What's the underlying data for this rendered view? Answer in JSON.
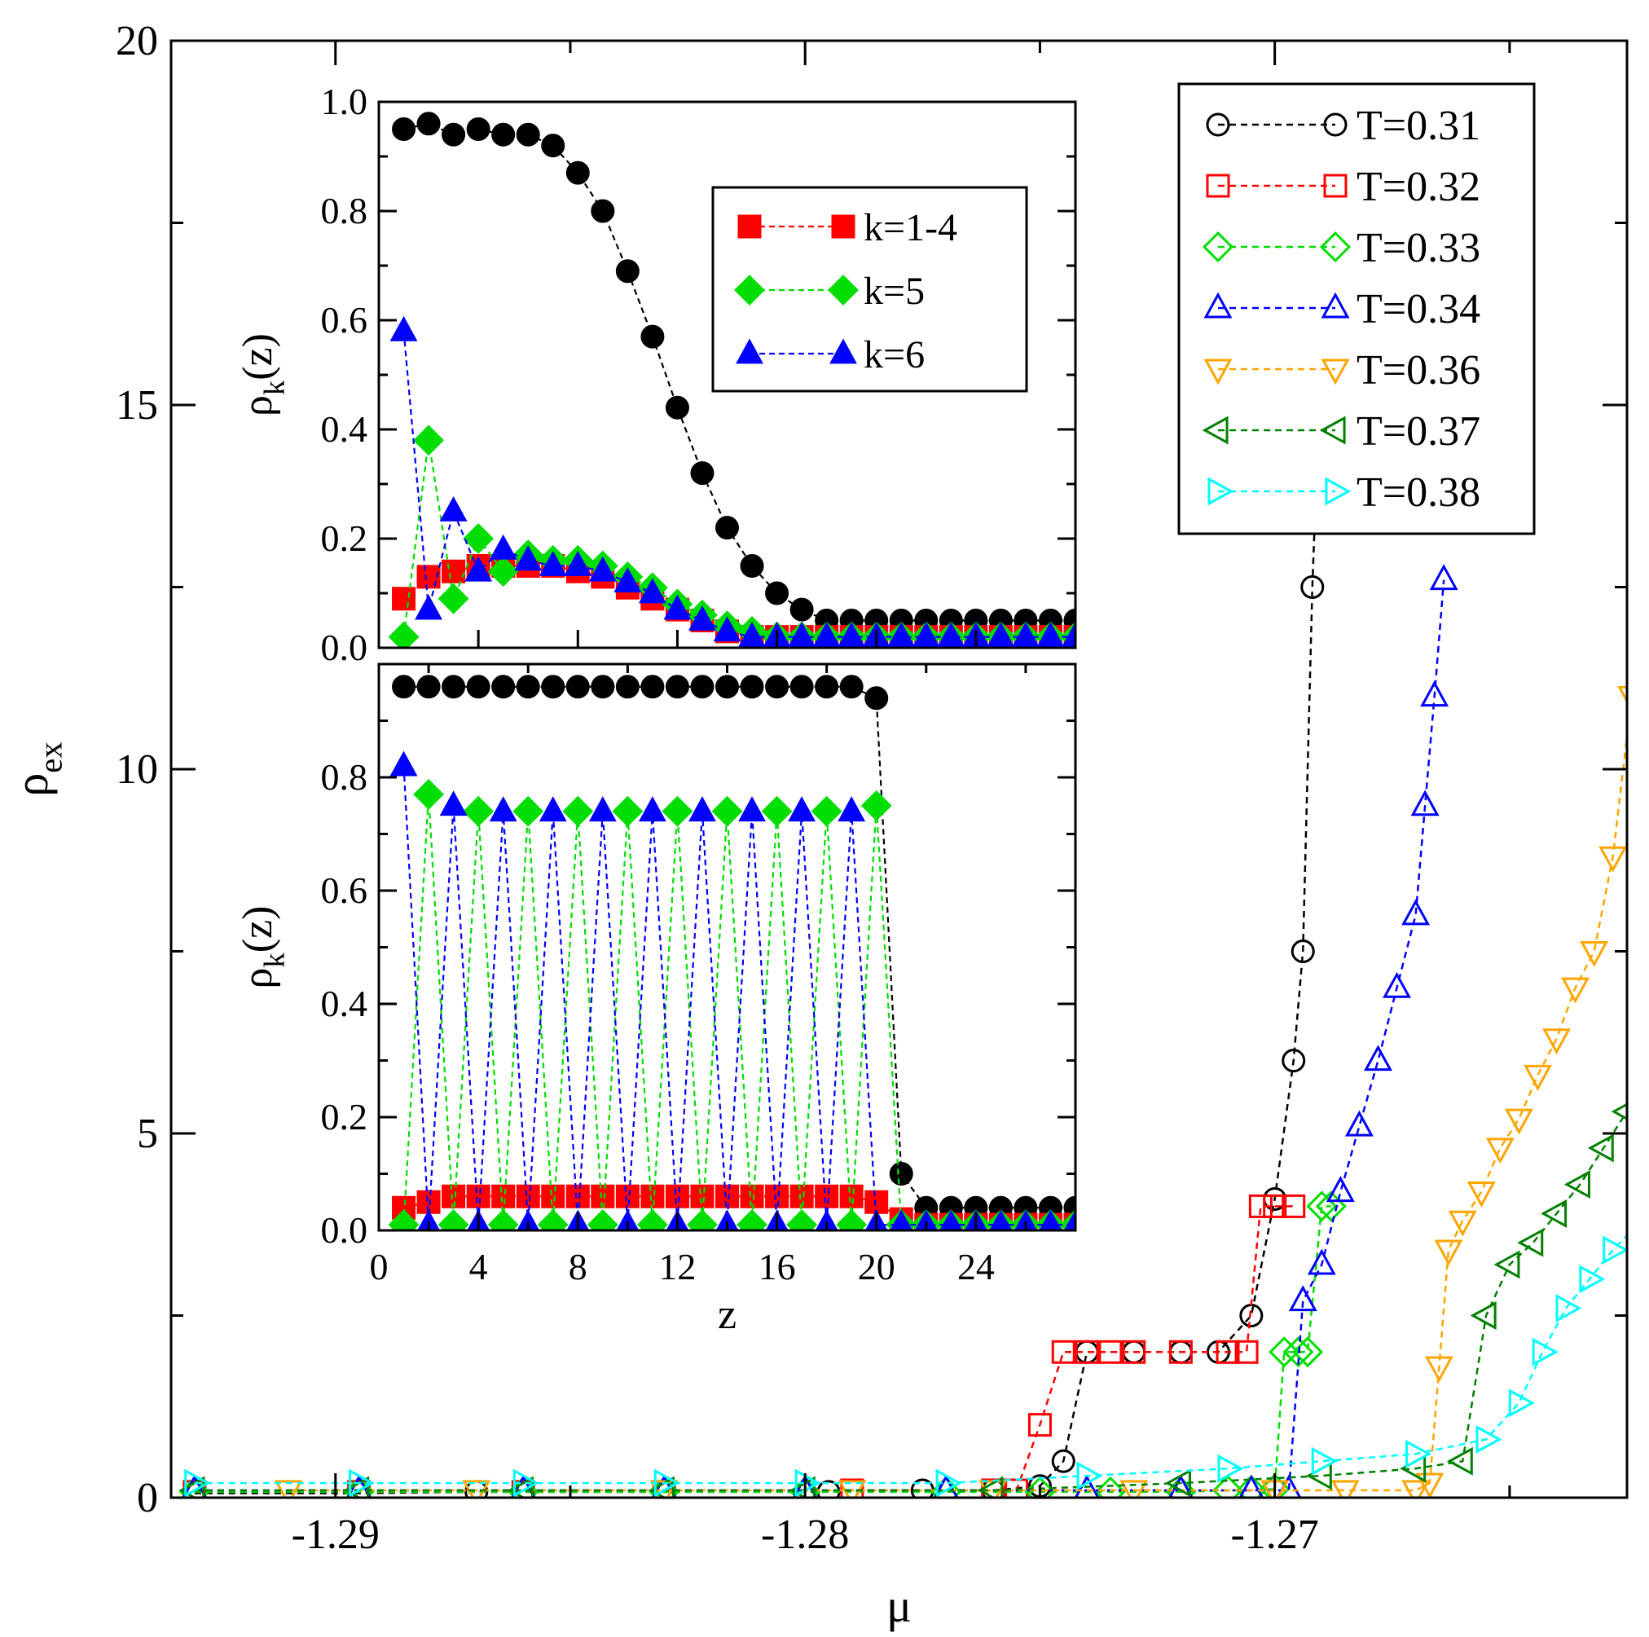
{
  "chart_data": [
    {
      "name": "main",
      "type": "line",
      "xlabel": "μ",
      "ylabel": "ρ",
      "ylabel_sub": "ex",
      "xlim": [
        -1.2935,
        -1.2625
      ],
      "ylim": [
        0,
        20
      ],
      "xticks": [
        -1.29,
        -1.28,
        -1.27
      ],
      "xtick_labels": [
        "-1.29",
        "-1.28",
        "-1.27"
      ],
      "yticks": [
        0,
        5,
        10,
        15,
        20
      ],
      "ytick_labels": [
        "0",
        "5",
        "10",
        "15",
        "20"
      ],
      "legend_position": "top-right",
      "series": [
        {
          "name": "T=0.31",
          "color": "#000000",
          "marker": "circle",
          "x": [
            -1.293,
            -1.2895,
            -1.287,
            -1.283,
            -1.2795,
            -1.2775,
            -1.276,
            -1.275,
            -1.2745,
            -1.274,
            -1.273,
            -1.272,
            -1.2712,
            -1.2705,
            -1.27,
            -1.2696,
            -1.2694,
            -1.2692,
            -1.269
          ],
          "y": [
            0.06,
            0.06,
            0.08,
            0.08,
            0.08,
            0.1,
            0.1,
            0.16,
            0.5,
            2.0,
            2.0,
            2.0,
            2.0,
            2.5,
            4.1,
            6.0,
            7.5,
            12.5,
            16.0
          ]
        },
        {
          "name": "T=0.32",
          "color": "#ff0000",
          "marker": "square",
          "x": [
            -1.293,
            -1.2895,
            -1.286,
            -1.283,
            -1.279,
            -1.276,
            -1.2755,
            -1.275,
            -1.2745,
            -1.274,
            -1.2735,
            -1.273,
            -1.272,
            -1.271,
            -1.2706,
            -1.2703,
            -1.27,
            -1.2696
          ],
          "y": [
            0.08,
            0.08,
            0.08,
            0.08,
            0.1,
            0.1,
            0.1,
            1.0,
            2.0,
            2.0,
            2.0,
            2.0,
            2.0,
            2.0,
            2.0,
            4.0,
            4.0,
            4.0
          ]
        },
        {
          "name": "T=0.33",
          "color": "#00dd00",
          "marker": "diamond",
          "x": [
            -1.293,
            -1.2895,
            -1.286,
            -1.283,
            -1.28,
            -1.277,
            -1.275,
            -1.2735,
            -1.272,
            -1.271,
            -1.2705,
            -1.27,
            -1.2698,
            -1.2695,
            -1.2693,
            -1.269,
            -1.2688
          ],
          "y": [
            0.08,
            0.08,
            0.08,
            0.08,
            0.08,
            0.08,
            0.08,
            0.08,
            0.08,
            0.1,
            0.1,
            0.12,
            2.0,
            2.0,
            2.0,
            4.0,
            4.0
          ]
        },
        {
          "name": "T=0.34",
          "color": "#0000ff",
          "marker": "triangle-up",
          "x": [
            -1.293,
            -1.2895,
            -1.286,
            -1.283,
            -1.28,
            -1.277,
            -1.274,
            -1.272,
            -1.2705,
            -1.2697,
            -1.2694,
            -1.269,
            -1.2686,
            -1.2682,
            -1.2678,
            -1.2674,
            -1.267,
            -1.2668,
            -1.2666,
            -1.2664
          ],
          "y": [
            0.1,
            0.1,
            0.1,
            0.1,
            0.1,
            0.1,
            0.1,
            0.1,
            0.1,
            0.1,
            2.7,
            3.2,
            4.2,
            5.1,
            6.0,
            7.0,
            8.0,
            9.5,
            11.0,
            12.6
          ]
        },
        {
          "name": "T=0.36",
          "color": "#ffa500",
          "marker": "triangle-down",
          "x": [
            -1.291,
            -1.287,
            -1.283,
            -1.279,
            -1.276,
            -1.273,
            -1.27,
            -1.2685,
            -1.267,
            -1.2667,
            -1.2665,
            -1.2663,
            -1.266,
            -1.2656,
            -1.2652,
            -1.2648,
            -1.2644,
            -1.264,
            -1.2636,
            -1.2632,
            -1.2628,
            -1.2624
          ],
          "y": [
            0.1,
            0.1,
            0.1,
            0.1,
            0.1,
            0.1,
            0.1,
            0.1,
            0.1,
            0.2,
            1.8,
            3.4,
            3.8,
            4.2,
            4.8,
            5.2,
            5.8,
            6.3,
            7.0,
            7.5,
            8.8,
            11.0
          ]
        },
        {
          "name": "T=0.37",
          "color": "#008000",
          "marker": "triangle-left",
          "x": [
            -1.293,
            -1.2895,
            -1.286,
            -1.283,
            -1.28,
            -1.276,
            -1.272,
            -1.269,
            -1.267,
            -1.266,
            -1.2655,
            -1.265,
            -1.2645,
            -1.264,
            -1.2635,
            -1.263,
            -1.2625,
            -1.262,
            -1.2616,
            -1.2612,
            -1.2608,
            -1.2604
          ],
          "y": [
            0.1,
            0.1,
            0.1,
            0.1,
            0.1,
            0.1,
            0.2,
            0.3,
            0.4,
            0.5,
            2.5,
            3.2,
            3.5,
            3.9,
            4.3,
            4.8,
            5.3,
            5.9,
            6.5,
            7.5,
            8.5,
            11.0
          ]
        },
        {
          "name": "T=0.38",
          "color": "#00ffff",
          "marker": "triangle-right",
          "x": [
            -1.293,
            -1.2895,
            -1.286,
            -1.283,
            -1.28,
            -1.277,
            -1.274,
            -1.271,
            -1.269,
            -1.267,
            -1.2655,
            -1.2648,
            -1.2643,
            -1.2638,
            -1.2633,
            -1.2628,
            -1.2622,
            -1.2616,
            -1.261,
            -1.2604,
            -1.2598,
            -1.2592
          ],
          "y": [
            0.2,
            0.2,
            0.2,
            0.2,
            0.2,
            0.2,
            0.3,
            0.4,
            0.5,
            0.6,
            0.8,
            1.3,
            2.0,
            2.6,
            3.0,
            3.4,
            3.8,
            4.3,
            5.0,
            6.0,
            7.5,
            10.0
          ]
        }
      ]
    },
    {
      "name": "inset-top",
      "type": "line",
      "ylabel": "ρ",
      "ylabel_sub": "k",
      "ylabel_suffix": "(z)",
      "xlim": [
        0,
        28
      ],
      "ylim": [
        0,
        1.0
      ],
      "yticks": [
        0,
        0.2,
        0.4,
        0.6,
        0.8,
        1.0
      ],
      "ytick_labels": [
        "0.0",
        "0.2",
        "0.4",
        "0.6",
        "0.8",
        "1.0"
      ],
      "legend_position": "top-right",
      "series": [
        {
          "name": "total",
          "color": "#000000",
          "marker": "filled-circle",
          "legend": false,
          "x": [
            1,
            2,
            3,
            4,
            5,
            6,
            7,
            8,
            9,
            10,
            11,
            12,
            13,
            14,
            15,
            16,
            17,
            18,
            19,
            20,
            21,
            22,
            23,
            24,
            25,
            26,
            27,
            28
          ],
          "y": [
            0.95,
            0.96,
            0.94,
            0.95,
            0.94,
            0.94,
            0.92,
            0.87,
            0.8,
            0.69,
            0.57,
            0.44,
            0.32,
            0.22,
            0.15,
            0.1,
            0.07,
            0.05,
            0.05,
            0.05,
            0.05,
            0.05,
            0.05,
            0.05,
            0.05,
            0.05,
            0.05,
            0.05
          ]
        },
        {
          "name": "k=1-4",
          "color": "#ff0000",
          "marker": "filled-square",
          "x": [
            1,
            2,
            3,
            4,
            5,
            6,
            7,
            8,
            9,
            10,
            11,
            12,
            13,
            14,
            15,
            16,
            17,
            18,
            19,
            20,
            21,
            22,
            23,
            24,
            25,
            26,
            27,
            28
          ],
          "y": [
            0.09,
            0.13,
            0.14,
            0.15,
            0.15,
            0.15,
            0.15,
            0.14,
            0.13,
            0.11,
            0.09,
            0.07,
            0.05,
            0.03,
            0.02,
            0.02,
            0.02,
            0.02,
            0.02,
            0.02,
            0.02,
            0.02,
            0.02,
            0.02,
            0.02,
            0.02,
            0.02,
            0.02
          ]
        },
        {
          "name": "k=5",
          "color": "#00dd00",
          "marker": "filled-diamond",
          "x": [
            1,
            2,
            3,
            4,
            5,
            6,
            7,
            8,
            9,
            10,
            11,
            12,
            13,
            14,
            15,
            16,
            17,
            18,
            19,
            20,
            21,
            22,
            23,
            24,
            25,
            26,
            27,
            28
          ],
          "y": [
            0.02,
            0.38,
            0.09,
            0.2,
            0.14,
            0.17,
            0.16,
            0.16,
            0.15,
            0.13,
            0.11,
            0.08,
            0.06,
            0.04,
            0.03,
            0.02,
            0.02,
            0.02,
            0.02,
            0.02,
            0.02,
            0.02,
            0.02,
            0.02,
            0.02,
            0.02,
            0.02,
            0.02
          ]
        },
        {
          "name": "k=6",
          "color": "#0000ff",
          "marker": "filled-triangle-up",
          "x": [
            1,
            2,
            3,
            4,
            5,
            6,
            7,
            8,
            9,
            10,
            11,
            12,
            13,
            14,
            15,
            16,
            17,
            18,
            19,
            20,
            21,
            22,
            23,
            24,
            25,
            26,
            27,
            28
          ],
          "y": [
            0.58,
            0.07,
            0.25,
            0.14,
            0.18,
            0.16,
            0.15,
            0.15,
            0.14,
            0.12,
            0.1,
            0.07,
            0.05,
            0.03,
            0.02,
            0.02,
            0.02,
            0.02,
            0.02,
            0.02,
            0.02,
            0.02,
            0.02,
            0.02,
            0.02,
            0.02,
            0.02,
            0.02
          ]
        }
      ],
      "legend_entries": [
        "k=1-4",
        "k=5",
        "k=6"
      ]
    },
    {
      "name": "inset-bottom",
      "type": "line",
      "xlabel": "z",
      "ylabel": "ρ",
      "ylabel_sub": "k",
      "ylabel_suffix": "(z)",
      "xlim": [
        0,
        28
      ],
      "ylim": [
        0,
        1.0
      ],
      "xticks": [
        0,
        4,
        8,
        12,
        16,
        20,
        24
      ],
      "xtick_labels": [
        "0",
        "4",
        "8",
        "12",
        "16",
        "20",
        "24"
      ],
      "yticks": [
        0,
        0.2,
        0.4,
        0.6,
        0.8
      ],
      "ytick_labels": [
        "0.0",
        "0.2",
        "0.4",
        "0.6",
        "0.8"
      ],
      "series": [
        {
          "name": "total",
          "color": "#000000",
          "marker": "filled-circle",
          "x": [
            1,
            2,
            3,
            4,
            5,
            6,
            7,
            8,
            9,
            10,
            11,
            12,
            13,
            14,
            15,
            16,
            17,
            18,
            19,
            20,
            21,
            22,
            23,
            24,
            25,
            26,
            27,
            28
          ],
          "y": [
            0.96,
            0.96,
            0.96,
            0.96,
            0.96,
            0.96,
            0.96,
            0.96,
            0.96,
            0.96,
            0.96,
            0.96,
            0.96,
            0.96,
            0.96,
            0.96,
            0.96,
            0.96,
            0.96,
            0.94,
            0.1,
            0.04,
            0.04,
            0.04,
            0.04,
            0.04,
            0.04,
            0.04
          ]
        },
        {
          "name": "k=1-4",
          "color": "#ff0000",
          "marker": "filled-square",
          "x": [
            1,
            2,
            3,
            4,
            5,
            6,
            7,
            8,
            9,
            10,
            11,
            12,
            13,
            14,
            15,
            16,
            17,
            18,
            19,
            20,
            21,
            22,
            23,
            24,
            25,
            26,
            27,
            28
          ],
          "y": [
            0.04,
            0.05,
            0.06,
            0.06,
            0.06,
            0.06,
            0.06,
            0.06,
            0.06,
            0.06,
            0.06,
            0.06,
            0.06,
            0.06,
            0.06,
            0.06,
            0.06,
            0.06,
            0.06,
            0.05,
            0.02,
            0.01,
            0.01,
            0.01,
            0.01,
            0.01,
            0.01,
            0.01
          ]
        },
        {
          "name": "k=5",
          "color": "#00dd00",
          "marker": "filled-diamond",
          "x": [
            1,
            2,
            3,
            4,
            5,
            6,
            7,
            8,
            9,
            10,
            11,
            12,
            13,
            14,
            15,
            16,
            17,
            18,
            19,
            20,
            21,
            22,
            23,
            24,
            25,
            26,
            27,
            28
          ],
          "y": [
            0.01,
            0.77,
            0.01,
            0.74,
            0.01,
            0.74,
            0.01,
            0.74,
            0.01,
            0.74,
            0.01,
            0.74,
            0.01,
            0.74,
            0.01,
            0.74,
            0.01,
            0.74,
            0.01,
            0.75,
            0.01,
            0.01,
            0.01,
            0.01,
            0.01,
            0.01,
            0.01,
            0.01
          ]
        },
        {
          "name": "k=6",
          "color": "#0000ff",
          "marker": "filled-triangle-up",
          "x": [
            1,
            2,
            3,
            4,
            5,
            6,
            7,
            8,
            9,
            10,
            11,
            12,
            13,
            14,
            15,
            16,
            17,
            18,
            19,
            20,
            21,
            22,
            23,
            24,
            25,
            26,
            27,
            28
          ],
          "y": [
            0.82,
            0.01,
            0.75,
            0.01,
            0.74,
            0.01,
            0.74,
            0.01,
            0.74,
            0.01,
            0.74,
            0.01,
            0.74,
            0.01,
            0.74,
            0.01,
            0.74,
            0.01,
            0.74,
            0.01,
            0.01,
            0.01,
            0.01,
            0.01,
            0.01,
            0.01,
            0.01,
            0.01
          ]
        }
      ]
    }
  ]
}
